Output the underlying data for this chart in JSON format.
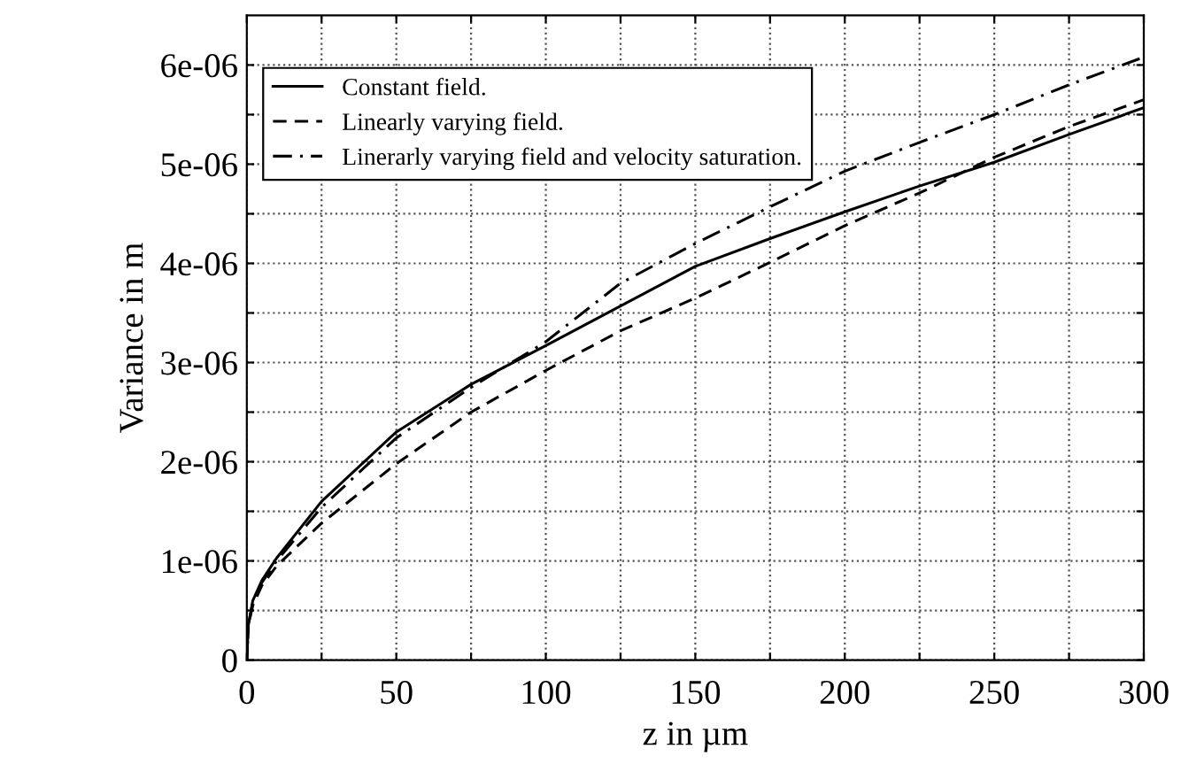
{
  "chart_data": {
    "type": "line",
    "xlabel": "z in µm",
    "ylabel": "Variance in m",
    "xlim": [
      0,
      300
    ],
    "ylim": [
      0,
      6.5e-06
    ],
    "xticks": [
      0,
      {
        "value": 25,
        "label": null
      },
      50,
      {
        "value": 75,
        "label": null
      },
      100,
      {
        "value": 125,
        "label": null
      },
      150,
      {
        "value": 175,
        "label": null
      },
      200,
      {
        "value": 225,
        "label": null
      },
      250,
      {
        "value": 275,
        "label": null
      },
      300
    ],
    "yticks": [
      {
        "value": 0,
        "label": "0"
      },
      {
        "value": 5e-07,
        "label": null
      },
      {
        "value": 1e-06,
        "label": "1e-06"
      },
      {
        "value": 1.5e-06,
        "label": null
      },
      {
        "value": 2e-06,
        "label": "2e-06"
      },
      {
        "value": 2.5e-06,
        "label": null
      },
      {
        "value": 3e-06,
        "label": "3e-06"
      },
      {
        "value": 3.5e-06,
        "label": null
      },
      {
        "value": 4e-06,
        "label": "4e-06"
      },
      {
        "value": 4.5e-06,
        "label": null
      },
      {
        "value": 5e-06,
        "label": "5e-06"
      },
      {
        "value": 5.5e-06,
        "label": null
      },
      {
        "value": 6e-06,
        "label": "6e-06"
      }
    ],
    "grid": true,
    "legend": "top left",
    "series": [
      {
        "name": "Constant field.",
        "color": "#000000",
        "line_style": "solid",
        "x": [
          0,
          0.5,
          2,
          5,
          10,
          25,
          50,
          75,
          100,
          125,
          150,
          175,
          200,
          225,
          250,
          275,
          300
        ],
        "values": [
          0,
          3.5e-07,
          6e-07,
          8e-07,
          1.03e-06,
          1.6e-06,
          2.3e-06,
          2.78e-06,
          3.17e-06,
          3.57e-06,
          3.97e-06,
          4.25e-06,
          4.52e-06,
          4.78e-06,
          5.02e-06,
          5.3e-06,
          5.57e-06
        ]
      },
      {
        "name": "Linearly varying field.",
        "color": "#000000",
        "line_style": "dashed",
        "x": [
          0,
          0.5,
          2,
          5,
          10,
          25,
          50,
          75,
          100,
          125,
          150,
          175,
          200,
          225,
          250,
          275,
          300
        ],
        "values": [
          0,
          3.5e-07,
          5.5e-07,
          7.5e-07,
          9.5e-07,
          1.38e-06,
          1.98e-06,
          2.5e-06,
          2.92e-06,
          3.32e-06,
          3.65e-06,
          4.01e-06,
          4.38e-06,
          4.71e-06,
          5.07e-06,
          5.38e-06,
          5.65e-06
        ]
      },
      {
        "name": "Linerarly varying field and velocity saturation.",
        "color": "#000000",
        "line_style": "dashdot",
        "x": [
          0,
          0.5,
          2,
          5,
          10,
          25,
          50,
          75,
          100,
          125,
          150,
          175,
          200,
          225,
          250,
          275,
          300
        ],
        "values": [
          0,
          3.5e-07,
          5.8e-07,
          7.8e-07,
          1e-06,
          1.54e-06,
          2.24e-06,
          2.75e-06,
          3.21e-06,
          3.8e-06,
          4.2e-06,
          4.57e-06,
          4.93e-06,
          5.22e-06,
          5.5e-06,
          5.8e-06,
          6.08e-06
        ]
      }
    ]
  }
}
